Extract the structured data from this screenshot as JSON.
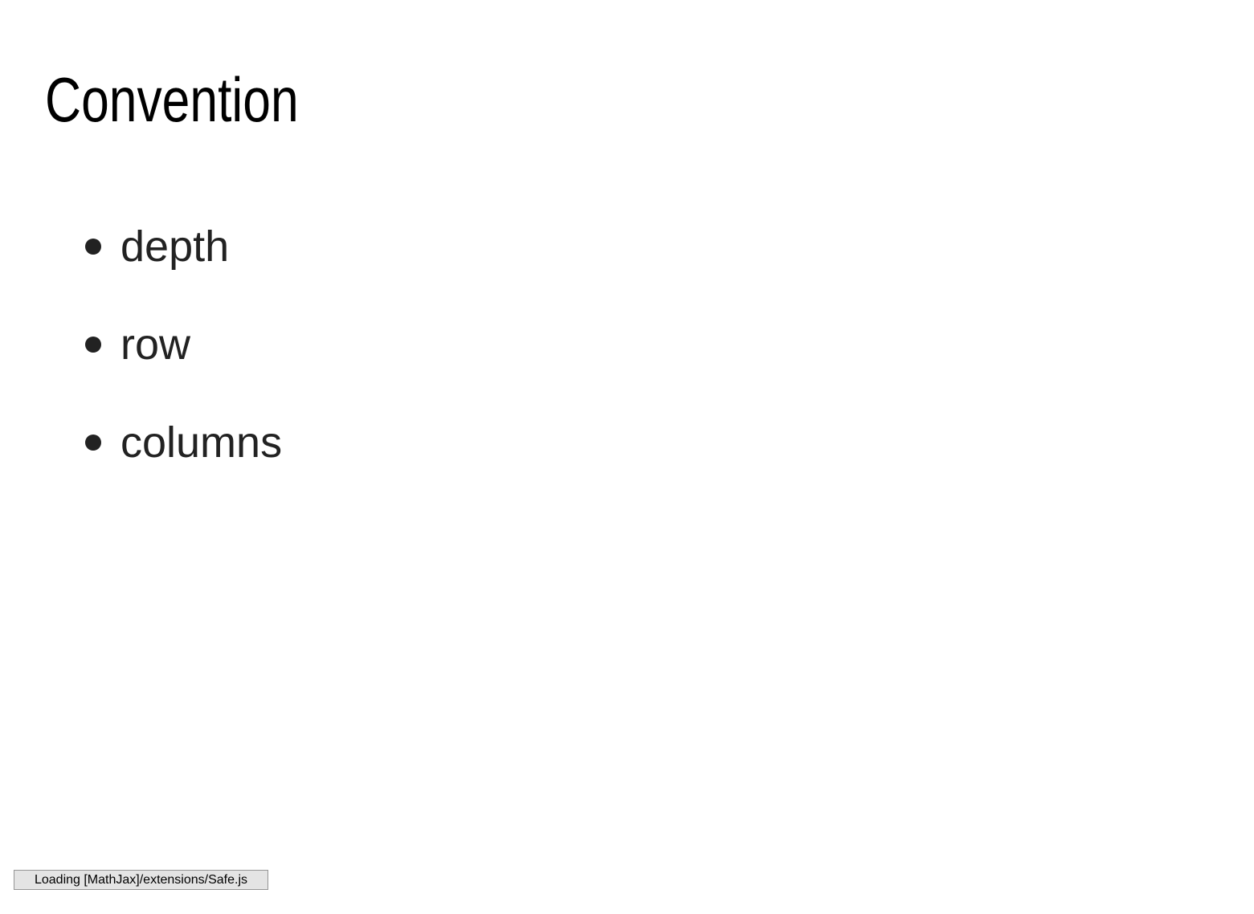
{
  "slide": {
    "title": "Convention",
    "bullets": [
      {
        "text": "depth"
      },
      {
        "text": "row"
      },
      {
        "text": "columns"
      }
    ]
  },
  "status": {
    "message": "Loading [MathJax]/extensions/Safe.js"
  },
  "colors": {
    "background": "#ffffff",
    "title": "#000000",
    "text": "#222222",
    "status_bg": "#e4e4e4",
    "status_border": "#959595"
  }
}
